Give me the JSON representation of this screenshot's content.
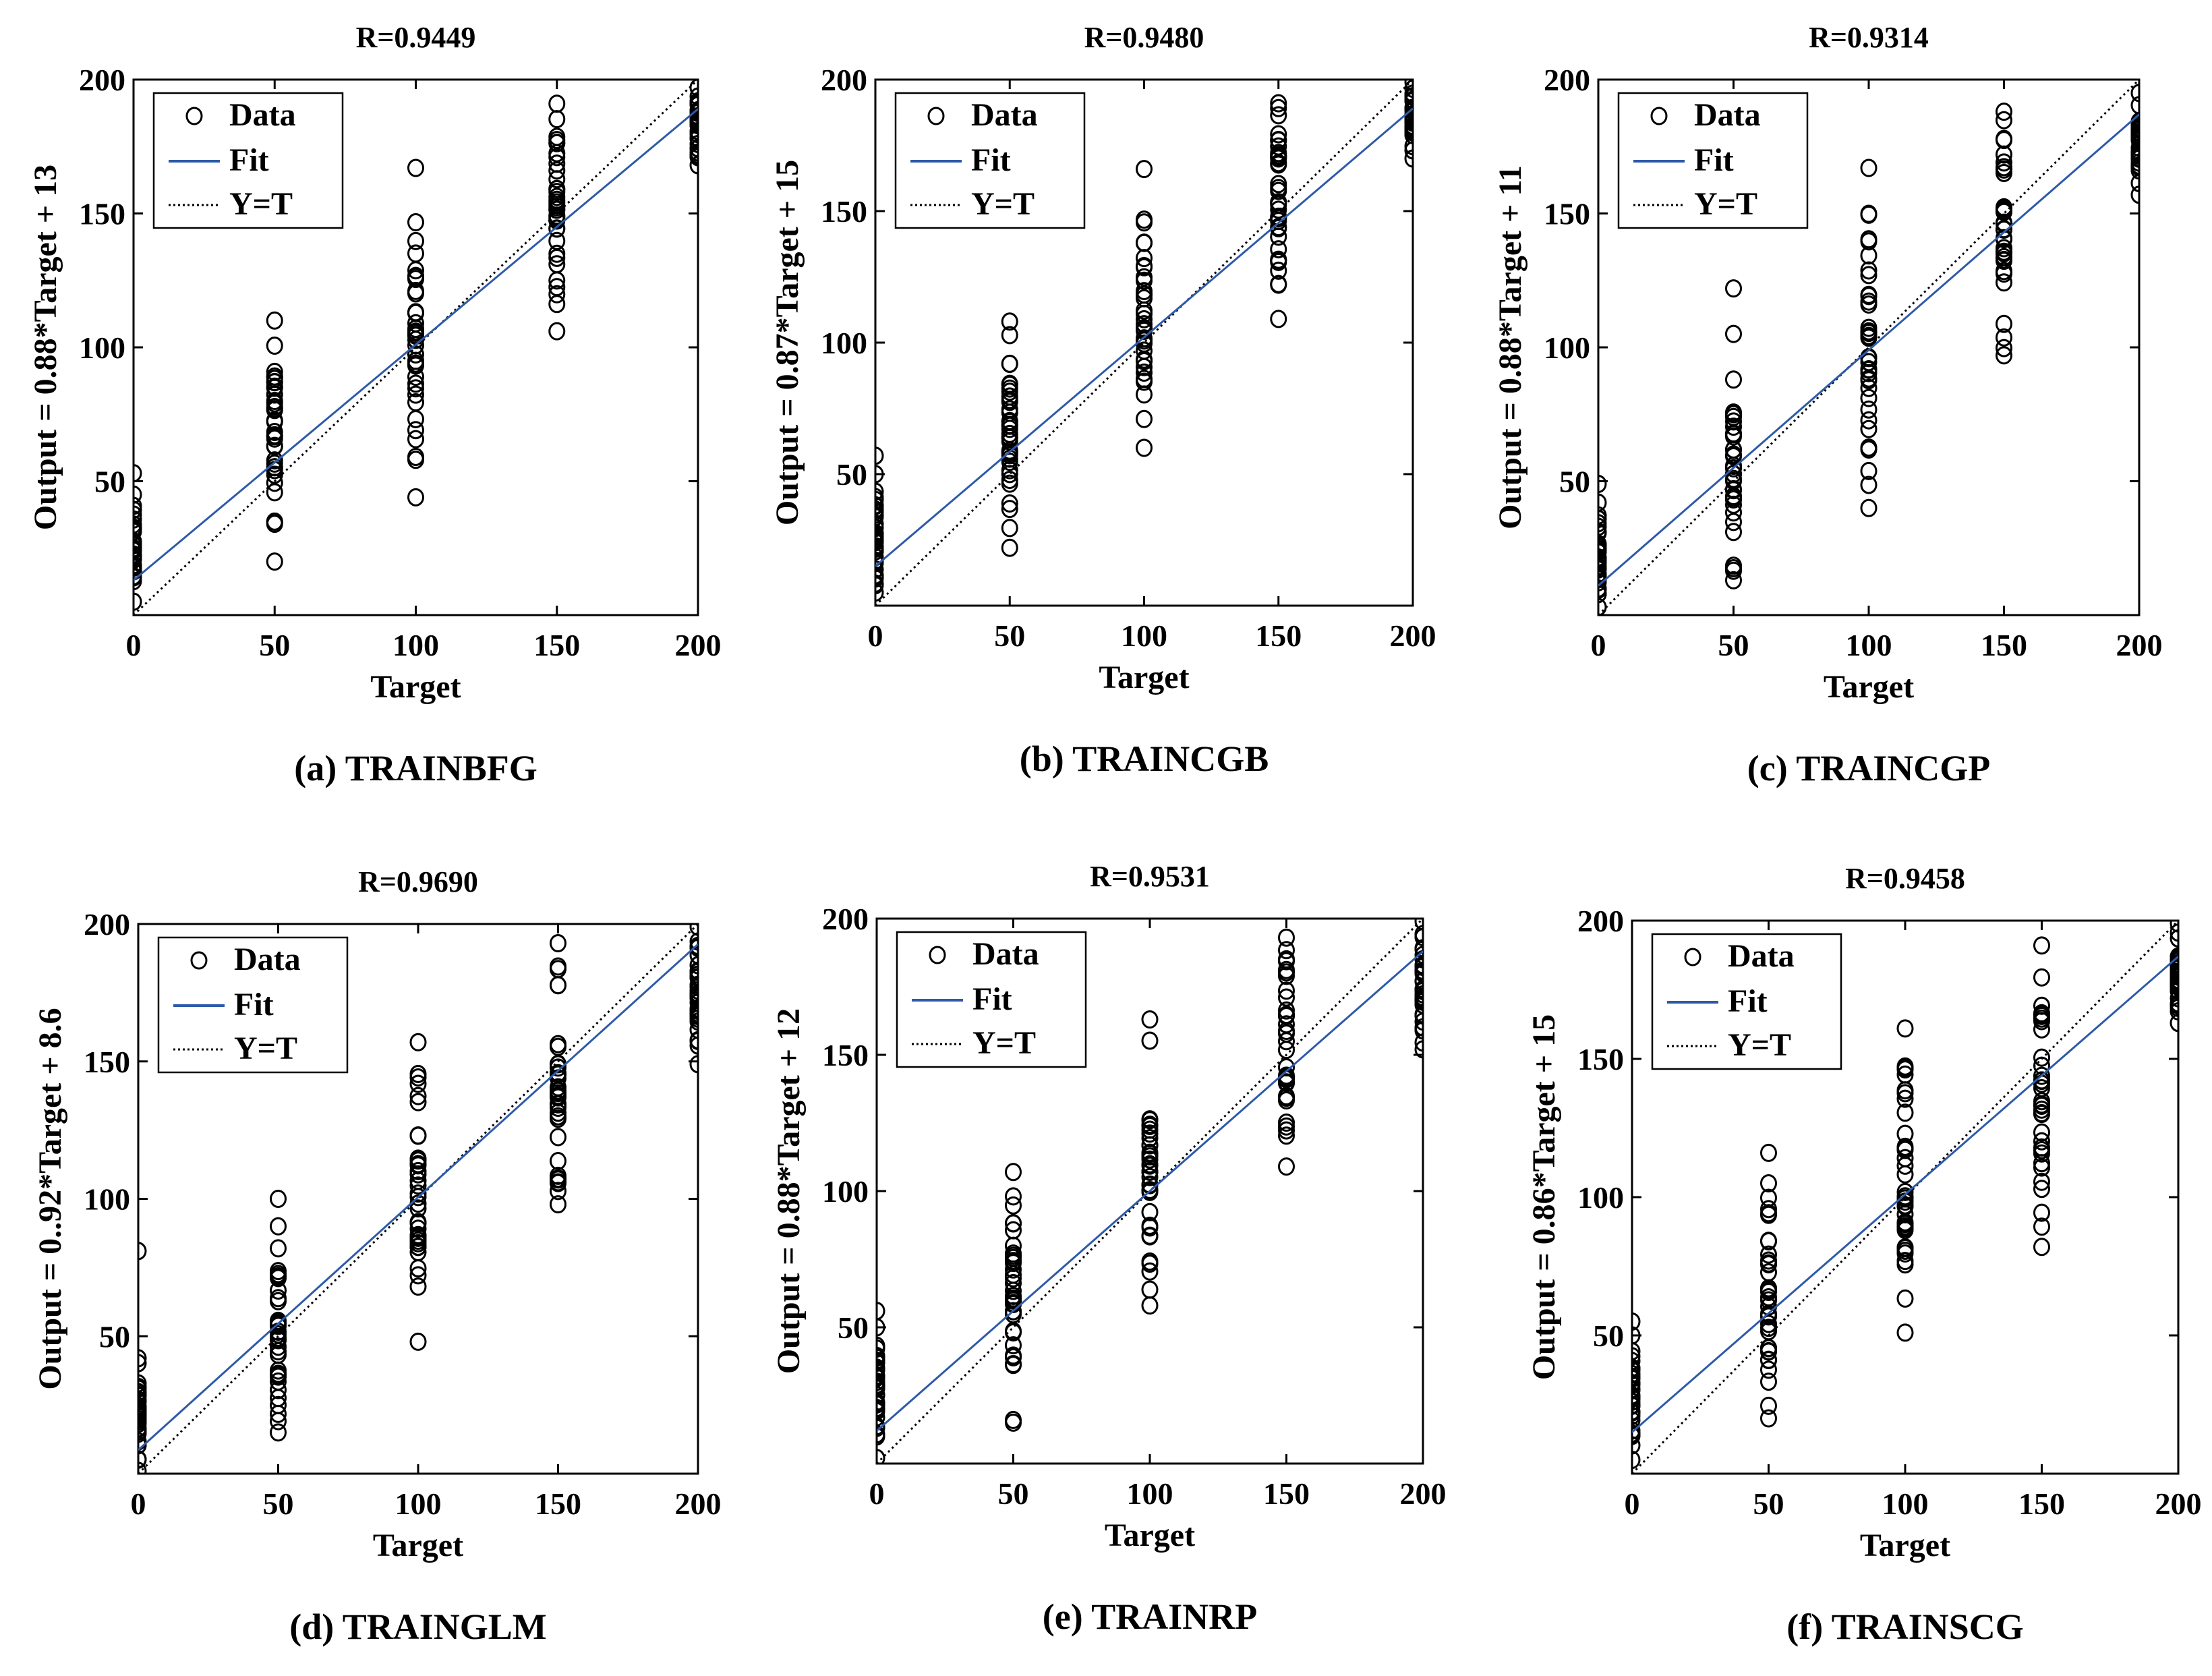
{
  "figure": {
    "colors": {
      "fit": "#2E5AA8",
      "data": "#000000",
      "axes": "#000000"
    },
    "icons": {
      "data_marker": "circle-marker-icon",
      "fit_line": "solid-line-icon",
      "identity_line": "dotted-line-icon"
    }
  },
  "chart_data": [
    {
      "type": "scatter",
      "title": "R=0.9449",
      "caption": "(a) TRAINBFG",
      "xlabel": "Target",
      "ylabel": "Output = 0.88*Target + 13",
      "xlim": [
        0,
        200
      ],
      "ylim": [
        0,
        200
      ],
      "xticks": [
        "0",
        "50",
        "100",
        "150",
        "200"
      ],
      "yticks": [
        "50",
        "100",
        "150",
        "200"
      ],
      "legend": {
        "position": "top-left",
        "entries": [
          "Data",
          "Fit",
          "Y=T"
        ]
      },
      "series": [
        {
          "name": "Data",
          "marker": "o",
          "points": [
            {
              "x": 0,
              "ymin": 5,
              "ymax": 45,
              "extra": [
                53
              ]
            },
            {
              "x": 50,
              "ymin": 20,
              "ymax": 110,
              "extra": []
            },
            {
              "x": 100,
              "ymin": 44,
              "ymax": 167,
              "extra": []
            },
            {
              "x": 150,
              "ymin": 106,
              "ymax": 191,
              "extra": []
            },
            {
              "x": 200,
              "ymin": 168,
              "ymax": 197,
              "extra": []
            }
          ]
        },
        {
          "name": "Fit",
          "slope": 0.88,
          "intercept": 13
        },
        {
          "name": "Y=T",
          "slope": 1,
          "intercept": 0
        }
      ]
    },
    {
      "type": "scatter",
      "title": "R=0.9480",
      "caption": "(b) TRAINCGB",
      "xlabel": "Target",
      "ylabel": "Output = 0.87*Target + 15",
      "xlim": [
        0,
        200
      ],
      "ylim": [
        0,
        200
      ],
      "xticks": [
        "0",
        "50",
        "100",
        "150",
        "200"
      ],
      "yticks": [
        "50",
        "100",
        "150",
        "200"
      ],
      "legend": {
        "position": "top-left",
        "entries": [
          "Data",
          "Fit",
          "Y=T"
        ]
      },
      "series": [
        {
          "name": "Data",
          "marker": "o",
          "points": [
            {
              "x": 0,
              "ymin": 5,
              "ymax": 50,
              "extra": [
                57
              ]
            },
            {
              "x": 50,
              "ymin": 22,
              "ymax": 108,
              "extra": []
            },
            {
              "x": 100,
              "ymin": 60,
              "ymax": 166,
              "extra": []
            },
            {
              "x": 150,
              "ymin": 109,
              "ymax": 191,
              "extra": []
            },
            {
              "x": 200,
              "ymin": 170,
              "ymax": 199,
              "extra": []
            }
          ]
        },
        {
          "name": "Fit",
          "slope": 0.87,
          "intercept": 15
        },
        {
          "name": "Y=T",
          "slope": 1,
          "intercept": 0
        }
      ]
    },
    {
      "type": "scatter",
      "title": "R=0.9314",
      "caption": "(c) TRAINCGP",
      "xlabel": "Target",
      "ylabel": "Output = 0.88*Target + 11",
      "xlim": [
        0,
        200
      ],
      "ylim": [
        0,
        200
      ],
      "xticks": [
        "0",
        "50",
        "100",
        "150",
        "200"
      ],
      "yticks": [
        "50",
        "100",
        "150",
        "200"
      ],
      "legend": {
        "position": "top-left",
        "entries": [
          "Data",
          "Fit",
          "Y=T"
        ]
      },
      "series": [
        {
          "name": "Data",
          "marker": "o",
          "points": [
            {
              "x": 0,
              "ymin": 3,
              "ymax": 42,
              "extra": [
                49
              ]
            },
            {
              "x": 50,
              "ymin": 13,
              "ymax": 105,
              "extra": [
                122
              ]
            },
            {
              "x": 100,
              "ymin": 40,
              "ymax": 167,
              "extra": []
            },
            {
              "x": 150,
              "ymin": 97,
              "ymax": 188,
              "extra": []
            },
            {
              "x": 200,
              "ymin": 157,
              "ymax": 195,
              "extra": []
            }
          ]
        },
        {
          "name": "Fit",
          "slope": 0.88,
          "intercept": 11
        },
        {
          "name": "Y=T",
          "slope": 1,
          "intercept": 0
        }
      ]
    },
    {
      "type": "scatter",
      "title": "R=0.9690",
      "caption": "(d) TRAINGLM",
      "xlabel": "Target",
      "ylabel": "Output = 0..92*Target + 8.6",
      "xlim": [
        0,
        200
      ],
      "ylim": [
        0,
        200
      ],
      "xticks": [
        "0",
        "50",
        "100",
        "150",
        "200"
      ],
      "yticks": [
        "50",
        "100",
        "150",
        "200"
      ],
      "legend": {
        "position": "top-left",
        "entries": [
          "Data",
          "Fit",
          "Y=T"
        ]
      },
      "series": [
        {
          "name": "Data",
          "marker": "o",
          "points": [
            {
              "x": 0,
              "ymin": 1,
              "ymax": 42,
              "extra": [
                81
              ]
            },
            {
              "x": 50,
              "ymin": 15,
              "ymax": 82,
              "extra": [
                90,
                100
              ]
            },
            {
              "x": 100,
              "ymin": 48,
              "ymax": 157,
              "extra": []
            },
            {
              "x": 150,
              "ymin": 98,
              "ymax": 193,
              "extra": []
            },
            {
              "x": 200,
              "ymin": 149,
              "ymax": 199,
              "extra": []
            }
          ]
        },
        {
          "name": "Fit",
          "slope": 0.92,
          "intercept": 8.6
        },
        {
          "name": "Y=T",
          "slope": 1,
          "intercept": 0
        }
      ]
    },
    {
      "type": "scatter",
      "title": "R=0.9531",
      "caption": "(e) TRAINRP",
      "xlabel": "Target",
      "ylabel": "Output = 0.88*Target + 12",
      "xlim": [
        0,
        200
      ],
      "ylim": [
        0,
        200
      ],
      "xticks": [
        "0",
        "50",
        "100",
        "150",
        "200"
      ],
      "yticks": [
        "50",
        "100",
        "150",
        "200"
      ],
      "legend": {
        "position": "top-left",
        "entries": [
          "Data",
          "Fit",
          "Y=T"
        ]
      },
      "series": [
        {
          "name": "Data",
          "marker": "o",
          "points": [
            {
              "x": 0,
              "ymin": 2,
              "ymax": 50,
              "extra": [
                56
              ]
            },
            {
              "x": 50,
              "ymin": 15,
              "ymax": 107,
              "extra": []
            },
            {
              "x": 100,
              "ymin": 58,
              "ymax": 163,
              "extra": []
            },
            {
              "x": 150,
              "ymin": 109,
              "ymax": 193,
              "extra": []
            },
            {
              "x": 200,
              "ymin": 152,
              "ymax": 199,
              "extra": []
            }
          ]
        },
        {
          "name": "Fit",
          "slope": 0.88,
          "intercept": 12
        },
        {
          "name": "Y=T",
          "slope": 1,
          "intercept": 0
        }
      ]
    },
    {
      "type": "scatter",
      "title": "R=0.9458",
      "caption": "(f) TRAINSCG",
      "xlabel": "Target",
      "ylabel": "Output = 0.86*Target + 15",
      "xlim": [
        0,
        200
      ],
      "ylim": [
        0,
        200
      ],
      "xticks": [
        "0",
        "50",
        "100",
        "150",
        "200"
      ],
      "yticks": [
        "50",
        "100",
        "150",
        "200"
      ],
      "legend": {
        "position": "top-left",
        "entries": [
          "Data",
          "Fit",
          "Y=T"
        ]
      },
      "series": [
        {
          "name": "Data",
          "marker": "o",
          "points": [
            {
              "x": 0,
              "ymin": 5,
              "ymax": 50,
              "extra": [
                55
              ]
            },
            {
              "x": 50,
              "ymin": 20,
              "ymax": 105,
              "extra": [
                116
              ]
            },
            {
              "x": 100,
              "ymin": 51,
              "ymax": 161,
              "extra": []
            },
            {
              "x": 150,
              "ymin": 82,
              "ymax": 191,
              "extra": [
                103
              ]
            },
            {
              "x": 200,
              "ymin": 163,
              "ymax": 199,
              "extra": []
            }
          ]
        },
        {
          "name": "Fit",
          "slope": 0.86,
          "intercept": 15
        },
        {
          "name": "Y=T",
          "slope": 1,
          "intercept": 0
        }
      ]
    }
  ]
}
